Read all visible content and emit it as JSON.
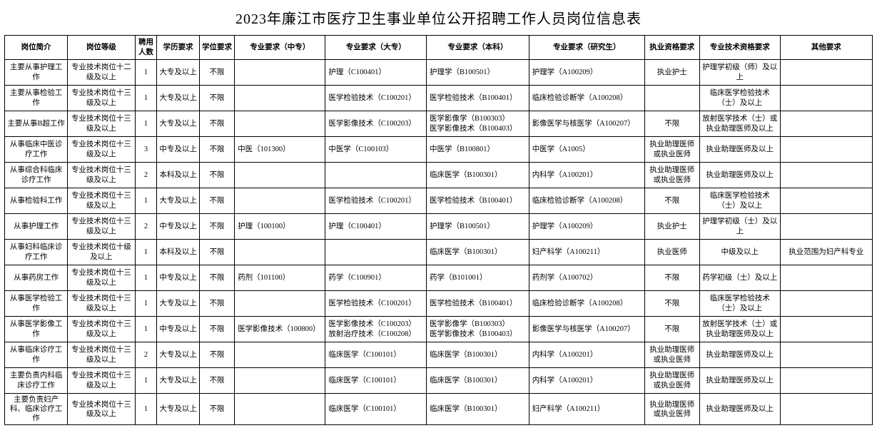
{
  "title": "2023年廉江市医疗卫生事业单位公开招聘工作人员岗位信息表",
  "columns": [
    "岗位简介",
    "岗位等级",
    "聘用人数",
    "学历要求",
    "学位要求",
    "专业要求（中专）",
    "专业要求（大专）",
    "专业要求（本科）",
    "专业要求（研究生）",
    "执业资格要求",
    "专业技术资格要求",
    "其他要求"
  ],
  "rows": [
    {
      "c0": "主要从事护理工作",
      "c1": "专业技术岗位十二级及以上",
      "c2": "1",
      "c3": "大专及以上",
      "c4": "不限",
      "c5": "",
      "c6": "护理（C100401）",
      "c7": "护理学（B100501）",
      "c8": "护理学（A100209）",
      "c9": "执业护士",
      "c10": "护理学初级（师）及以上",
      "c11": ""
    },
    {
      "c0": "主要从事检验工作",
      "c1": "专业技术岗位十三级及以上",
      "c2": "1",
      "c3": "大专及以上",
      "c4": "不限",
      "c5": "",
      "c6": "医学检验技术（C100201）",
      "c7": "医学检验技术（B100401）",
      "c8": "临床检验诊断学（A100208）",
      "c9": "",
      "c10": "临床医学检验技术（士）及以上",
      "c11": ""
    },
    {
      "c0": "主要从事B超工作",
      "c1": "专业技术岗位十三级及以上",
      "c2": "1",
      "c3": "大专及以上",
      "c4": "不限",
      "c5": "",
      "c6": "医学影像技术（C100203）",
      "c7": "医学影像学（B100303）\n医学影像技术（B100403）",
      "c8": "影像医学与核医学（A100207）",
      "c9": "不限",
      "c10": "放射医学技术（士）或执业助理医师及以上",
      "c11": ""
    },
    {
      "c0": "从事临床中医诊疗工作",
      "c1": "专业技术岗位十三级及以上",
      "c2": "3",
      "c3": "中专及以上",
      "c4": "不限",
      "c5": "中医（101300）",
      "c6": "中医学（C100103）",
      "c7": "中医学（B100801）",
      "c8": "中医学（A1005）",
      "c9": "执业助理医师或执业医师",
      "c10": "执业助理医师及以上",
      "c11": ""
    },
    {
      "c0": "从事综合科临床诊疗工作",
      "c1": "专业技术岗位十三级及以上",
      "c2": "2",
      "c3": "本科及以上",
      "c4": "不限",
      "c5": "",
      "c6": "",
      "c7": "临床医学（B100301）",
      "c8": "内科学（A100201）",
      "c9": "执业助理医师或执业医师",
      "c10": "执业助理医师及以上",
      "c11": ""
    },
    {
      "c0": "从事检验科工作",
      "c1": "专业技术岗位十三级及以上",
      "c2": "1",
      "c3": "大专及以上",
      "c4": "不限",
      "c5": "",
      "c6": "医学检验技术（C100201）",
      "c7": "医学检验技术（B100401）",
      "c8": "临床检验诊断学（A100208）",
      "c9": "不限",
      "c10": "临床医学检验技术（士）及以上",
      "c11": ""
    },
    {
      "c0": "从事护理工作",
      "c1": "专业技术岗位十三级及以上",
      "c2": "2",
      "c3": "中专及以上",
      "c4": "不限",
      "c5": "护理（100100）",
      "c6": "护理（C100401）",
      "c7": "护理学（B100501）",
      "c8": "护理学（A100209）",
      "c9": "执业护士",
      "c10": "护理学初级（士）及以上",
      "c11": ""
    },
    {
      "c0": "从事妇科临床诊疗工作",
      "c1": "专业技术岗位十级及以上",
      "c2": "1",
      "c3": "本科及以上",
      "c4": "不限",
      "c5": "",
      "c6": "",
      "c7": "临床医学（B100301）",
      "c8": "妇产科学（A100211）",
      "c9": "执业医师",
      "c10": "中级及以上",
      "c11": "执业范围为妇产科专业"
    },
    {
      "c0": "从事药房工作",
      "c1": "专业技术岗位十三级及以上",
      "c2": "1",
      "c3": "中专及以上",
      "c4": "不限",
      "c5": "药剂（101100）",
      "c6": "药学（C100901）",
      "c7": "药学（B101001）",
      "c8": "药剂学（A100702）",
      "c9": "不限",
      "c10": "药学初级（士）及以上",
      "c11": ""
    },
    {
      "c0": "从事医学检验工作",
      "c1": "专业技术岗位十三级及以上",
      "c2": "1",
      "c3": "大专及以上",
      "c4": "不限",
      "c5": "",
      "c6": "医学检验技术（C100201）",
      "c7": "医学检验技术（B100401）",
      "c8": "临床检验诊断学（A100208）",
      "c9": "不限",
      "c10": "临床医学检验技术（士）及以上",
      "c11": ""
    },
    {
      "c0": "从事医学影像工作",
      "c1": "专业技术岗位十三级及以上",
      "c2": "1",
      "c3": "中专及以上",
      "c4": "不限",
      "c5": "医学影像技术（100800）",
      "c6": "医学影像技术（C100203）\n放射治疗技术（C100208）",
      "c7": "医学影像学（B100303）\n医学影像技术（B100403）",
      "c8": "影像医学与核医学（A100207）",
      "c9": "不限",
      "c10": "放射医学技术（士）或执业助理医师及以上",
      "c11": ""
    },
    {
      "c0": "从事临床诊疗工作",
      "c1": "专业技术岗位十三级及以上",
      "c2": "2",
      "c3": "大专及以上",
      "c4": "不限",
      "c5": "",
      "c6": "临床医学（C100101）",
      "c7": "临床医学（B100301）",
      "c8": "内科学（A100201）",
      "c9": "执业助理医师或执业医师",
      "c10": "执业助理医师及以上",
      "c11": ""
    },
    {
      "c0": "主要负责内科临床诊疗工作",
      "c1": "专业技术岗位十三级及以上",
      "c2": "1",
      "c3": "大专及以上",
      "c4": "不限",
      "c5": "",
      "c6": "临床医学（C100101）",
      "c7": "临床医学（B100301）",
      "c8": "内科学（A100201）",
      "c9": "执业助理医师或执业医师",
      "c10": "执业助理医师及以上",
      "c11": ""
    },
    {
      "c0": "主要负责妇产科、临床诊疗工作",
      "c1": "专业技术岗位十三级及以上",
      "c2": "1",
      "c3": "大专及以上",
      "c4": "不限",
      "c5": "",
      "c6": "临床医学（C100101）",
      "c7": "临床医学（B100301）",
      "c8": "妇产科学（A100211）",
      "c9": "执业助理医师或执业医师",
      "c10": "执业助理医师及以上",
      "c11": ""
    }
  ]
}
